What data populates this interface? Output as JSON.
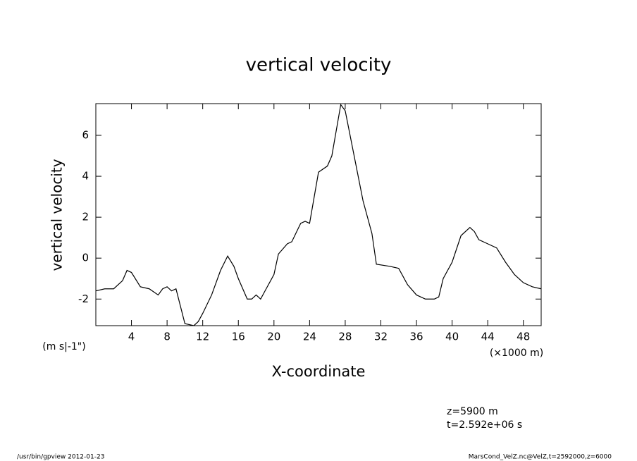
{
  "chart_data": {
    "type": "line",
    "title": "vertical velocity",
    "y_label": "vertical velocity",
    "y_unit": "(m s|-1\")",
    "x_label": "X-coordinate",
    "x_unit": "(×1000 m)",
    "annotations": [
      "z=5900  m",
      "t=2.592e+06 s"
    ],
    "footer_left": "/usr/bin/gpview  2012-01-23",
    "footer_right": "MarsCond_VelZ.nc@VelZ,t=2592000,z=6000",
    "color": "#000000",
    "x": [
      0,
      1,
      2,
      3,
      3.5,
      4,
      5,
      6,
      7,
      7.5,
      8,
      8.5,
      9,
      10,
      11,
      11.5,
      12,
      13,
      14,
      14.8,
      15.5,
      16,
      17,
      17.5,
      18,
      18.5,
      19,
      20,
      20.5,
      21.5,
      22,
      23,
      23.5,
      24,
      25,
      26,
      26.5,
      27.5,
      28,
      29,
      30,
      31,
      31.5,
      33,
      34,
      35,
      36,
      37,
      38,
      38.5,
      39,
      40,
      41,
      42,
      42.5,
      43,
      44,
      45,
      46,
      47,
      48,
      49,
      50
    ],
    "values": [
      -1.6,
      -1.5,
      -1.5,
      -1.1,
      -0.6,
      -0.7,
      -1.4,
      -1.5,
      -1.8,
      -1.5,
      -1.4,
      -1.6,
      -1.5,
      -3.2,
      -3.3,
      -3.1,
      -2.7,
      -1.8,
      -0.6,
      0.1,
      -0.4,
      -1.0,
      -2.0,
      -2.0,
      -1.8,
      -2.0,
      -1.6,
      -0.8,
      0.2,
      0.7,
      0.8,
      1.7,
      1.8,
      1.7,
      4.2,
      4.5,
      5.0,
      7.5,
      7.2,
      5.0,
      2.8,
      1.2,
      -0.3,
      -0.4,
      -0.5,
      -1.3,
      -1.8,
      -2.0,
      -2.0,
      -1.9,
      -1.0,
      -0.2,
      1.1,
      1.5,
      1.3,
      0.9,
      0.7,
      0.5,
      -0.2,
      -0.8,
      -1.2,
      -1.4,
      -1.5
    ],
    "xlim": [
      0,
      50
    ],
    "xticks": [
      4,
      8,
      12,
      16,
      20,
      24,
      28,
      32,
      36,
      40,
      44,
      48
    ],
    "ylim": [
      -3.3,
      7.55
    ],
    "yticks": [
      -2,
      0,
      2,
      4,
      6
    ]
  }
}
